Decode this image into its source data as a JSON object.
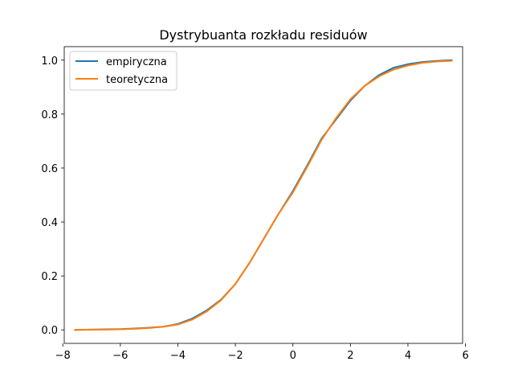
{
  "chart_data": {
    "type": "line",
    "title": "Dystrybuanta rozkładu residuów",
    "xlabel": "",
    "ylabel": "",
    "xlim": [
      -7.95,
      5.9
    ],
    "ylim": [
      -0.05,
      1.05
    ],
    "xticks": [
      -8,
      -6,
      -4,
      -2,
      0,
      2,
      4,
      6
    ],
    "xtick_labels": [
      "−8",
      "−6",
      "−4",
      "−2",
      "0",
      "2",
      "4",
      "6"
    ],
    "yticks": [
      0.0,
      0.2,
      0.4,
      0.6,
      0.8,
      1.0
    ],
    "ytick_labels": [
      "0.0",
      "0.2",
      "0.4",
      "0.6",
      "0.8",
      "1.0"
    ],
    "grid": false,
    "legend_position": "upper-left",
    "series": [
      {
        "name": "empiryczna",
        "color": "#1f77b4",
        "x": [
          -7.6,
          -7.0,
          -6.5,
          -6.0,
          -5.5,
          -5.0,
          -4.5,
          -4.0,
          -3.5,
          -3.0,
          -2.5,
          -2.0,
          -1.5,
          -1.0,
          -0.5,
          0.0,
          0.5,
          1.0,
          1.5,
          2.0,
          2.5,
          3.0,
          3.5,
          4.0,
          4.5,
          5.0,
          5.55
        ],
        "y": [
          0.0,
          0.001,
          0.002,
          0.003,
          0.005,
          0.008,
          0.012,
          0.022,
          0.042,
          0.072,
          0.112,
          0.17,
          0.25,
          0.34,
          0.43,
          0.515,
          0.61,
          0.71,
          0.78,
          0.85,
          0.905,
          0.945,
          0.972,
          0.985,
          0.993,
          0.997,
          1.0
        ]
      },
      {
        "name": "teoretyczna",
        "color": "#ff7f0e",
        "x": [
          -7.6,
          -7.0,
          -6.5,
          -6.0,
          -5.5,
          -5.0,
          -4.5,
          -4.0,
          -3.5,
          -3.0,
          -2.5,
          -2.0,
          -1.5,
          -1.0,
          -0.5,
          0.0,
          0.5,
          1.0,
          1.5,
          2.0,
          2.5,
          3.0,
          3.5,
          4.0,
          4.5,
          5.0,
          5.55
        ],
        "y": [
          0.0,
          0.001,
          0.001,
          0.002,
          0.004,
          0.007,
          0.012,
          0.02,
          0.038,
          0.068,
          0.11,
          0.17,
          0.25,
          0.34,
          0.43,
          0.51,
          0.605,
          0.705,
          0.785,
          0.855,
          0.905,
          0.94,
          0.965,
          0.98,
          0.99,
          0.995,
          0.998
        ]
      }
    ]
  }
}
